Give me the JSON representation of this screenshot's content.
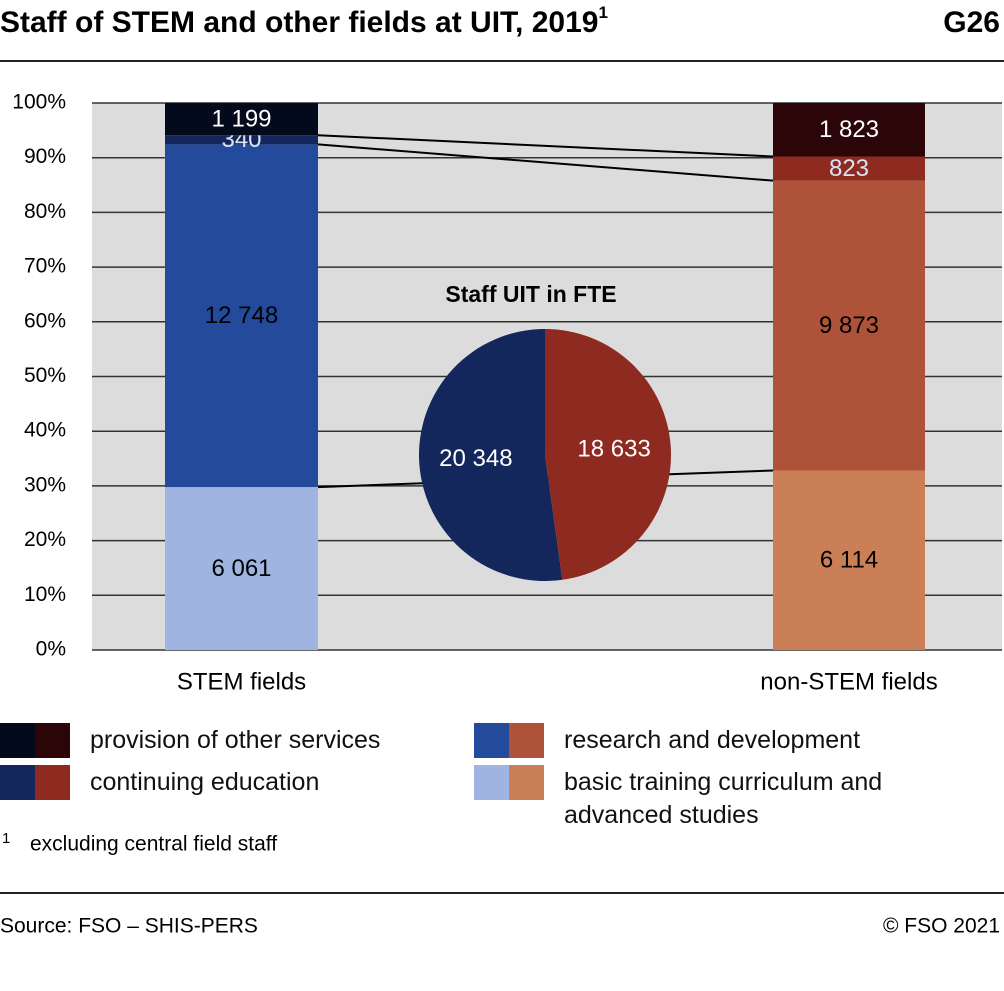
{
  "chart_data": [
    {
      "type": "bar",
      "stacked": "percent",
      "title": "Staff of STEM and other fields at UIT, 2019",
      "title_marker": "1",
      "chart_number": "G26",
      "footnote": {
        "marker": "1",
        "text": "excluding central field staff"
      },
      "source": "Source: FSO – SHIS-PERS",
      "copyright": "© FSO 2021",
      "categories": [
        "STEM fields",
        "non-STEM fields"
      ],
      "ylim": [
        0,
        100
      ],
      "yticks": [
        {
          "value": 0,
          "label": "0%"
        },
        {
          "value": 10,
          "label": "10%"
        },
        {
          "value": 20,
          "label": "20%"
        },
        {
          "value": 30,
          "label": "30%"
        },
        {
          "value": 40,
          "label": "40%"
        },
        {
          "value": 50,
          "label": "50%"
        },
        {
          "value": 60,
          "label": "60%"
        },
        {
          "value": 70,
          "label": "70%"
        },
        {
          "value": 80,
          "label": "80%"
        },
        {
          "value": 90,
          "label": "90%"
        },
        {
          "value": 100,
          "label": "100%"
        }
      ],
      "grid": true,
      "background": "#dcdcdc",
      "series": [
        {
          "name": "basic training curriculum and advanced studies",
          "colors": [
            "#9fb4e0",
            "#cb7f56"
          ],
          "label_color": "#000000",
          "values": [
            6061,
            6114
          ],
          "value_labels": [
            "6 061",
            "6 114"
          ]
        },
        {
          "name": "research and development",
          "colors": [
            "#234a9b",
            "#ae523a"
          ],
          "label_color": "#000000",
          "values": [
            12748,
            9873
          ],
          "value_labels": [
            "12 748",
            "9 873"
          ]
        },
        {
          "name": "continuing education",
          "colors": [
            "#13275c",
            "#8e2a1f"
          ],
          "label_color": "#dde3f2",
          "values": [
            340,
            823
          ],
          "value_labels": [
            "340",
            "823"
          ]
        },
        {
          "name": "provision of other services",
          "colors": [
            "#020a1c",
            "#2b0508"
          ],
          "label_color": "#ffffff",
          "values": [
            1199,
            1823
          ],
          "value_labels": [
            "1 199",
            "1 823"
          ]
        }
      ]
    },
    {
      "type": "pie",
      "title": "Staff UIT in FTE",
      "direction": "counterclockwise",
      "values": [
        20348,
        18633
      ],
      "value_labels": [
        "20 348",
        "18 633"
      ],
      "colors": [
        "#13275c",
        "#8e2a1f"
      ],
      "label_color": "#ffffff"
    }
  ]
}
